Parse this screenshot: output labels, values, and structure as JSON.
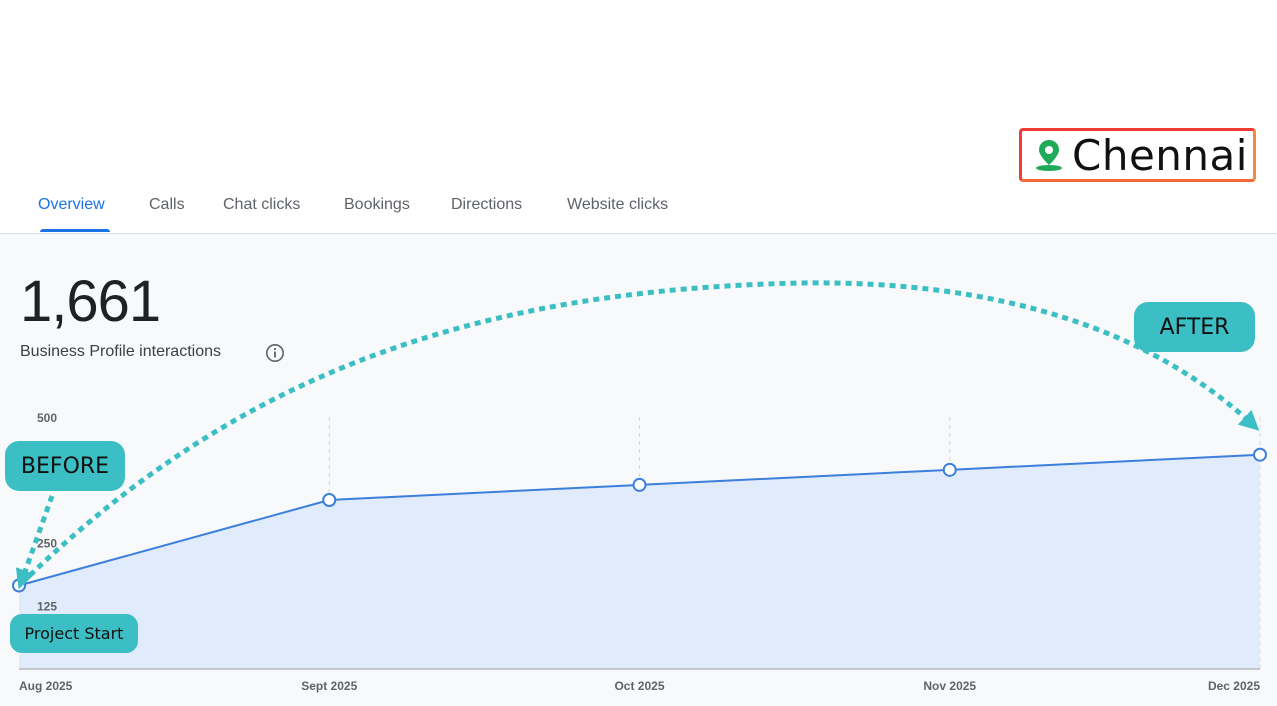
{
  "location": {
    "city": "Chennai",
    "icon": "location-pin-icon",
    "pin_color": "#1faa59"
  },
  "tabs": [
    {
      "label": "Overview",
      "active": true
    },
    {
      "label": "Calls",
      "active": false
    },
    {
      "label": "Chat clicks",
      "active": false
    },
    {
      "label": "Bookings",
      "active": false
    },
    {
      "label": "Directions",
      "active": false
    },
    {
      "label": "Website clicks",
      "active": false
    }
  ],
  "summary": {
    "total": "1,661",
    "label": "Business Profile interactions"
  },
  "annotations": {
    "before": "BEFORE",
    "after": "AFTER",
    "project_start": "Project Start"
  },
  "colors": {
    "accent": "#1a73e8",
    "line": "#3c7fdc",
    "fill": "#e0ebfb",
    "callout": "#3bbfc4",
    "arrow": "#3bbfc4"
  },
  "chart_data": {
    "type": "area",
    "categories": [
      "Aug 2025",
      "Sept 2025",
      "Oct 2025",
      "Nov 2025",
      "Dec 2025"
    ],
    "series": [
      {
        "values": [
          165,
          335,
          365,
          395,
          425
        ]
      }
    ],
    "y_ticks": [
      500,
      250,
      125
    ],
    "y_tick_labels": [
      "500",
      "250",
      "125"
    ],
    "ylim": [
      -1,
      500
    ],
    "grid": "vertical dashed",
    "xlabel": "",
    "ylabel": "",
    "title": ""
  }
}
